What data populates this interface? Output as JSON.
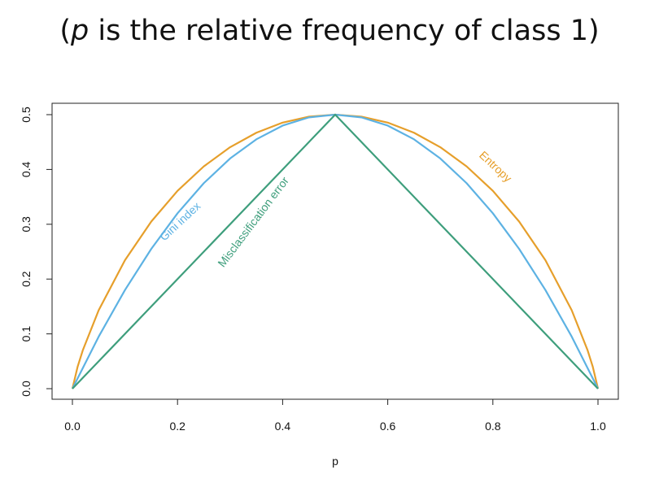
{
  "title": {
    "open_paren": "(",
    "variable": "p",
    "rest": " is the relative frequency of class 1)"
  },
  "chart_data": {
    "type": "line",
    "xlabel": "p",
    "ylabel": "",
    "xlim": [
      0.0,
      1.0
    ],
    "ylim": [
      0.0,
      0.5
    ],
    "xticks": [
      "0.0",
      "0.2",
      "0.4",
      "0.6",
      "0.8",
      "1.0"
    ],
    "yticks": [
      "0.0",
      "0.1",
      "0.2",
      "0.3",
      "0.4",
      "0.5"
    ],
    "grid": false,
    "legend": "none",
    "series": [
      {
        "name": "Entropy",
        "color": "#E69F2B",
        "x": [
          0.0,
          0.01,
          0.02,
          0.05,
          0.1,
          0.15,
          0.2,
          0.25,
          0.3,
          0.35,
          0.4,
          0.45,
          0.5,
          0.55,
          0.6,
          0.65,
          0.7,
          0.75,
          0.8,
          0.85,
          0.9,
          0.95,
          0.98,
          0.99,
          1.0
        ],
        "values": [
          0.0,
          0.0404,
          0.0707,
          0.1432,
          0.2345,
          0.3049,
          0.361,
          0.4056,
          0.4406,
          0.467,
          0.4855,
          0.4964,
          0.5,
          0.4964,
          0.4855,
          0.467,
          0.4406,
          0.4056,
          0.361,
          0.3049,
          0.2345,
          0.1432,
          0.0707,
          0.0404,
          0.0
        ]
      },
      {
        "name": "Gini index",
        "color": "#5DB2E3",
        "x": [
          0.0,
          0.05,
          0.1,
          0.15,
          0.2,
          0.25,
          0.3,
          0.35,
          0.4,
          0.45,
          0.5,
          0.55,
          0.6,
          0.65,
          0.7,
          0.75,
          0.8,
          0.85,
          0.9,
          0.95,
          1.0
        ],
        "values": [
          0.0,
          0.095,
          0.18,
          0.255,
          0.32,
          0.375,
          0.42,
          0.455,
          0.48,
          0.495,
          0.5,
          0.495,
          0.48,
          0.455,
          0.42,
          0.375,
          0.32,
          0.255,
          0.18,
          0.095,
          0.0
        ]
      },
      {
        "name": "Misclassification error",
        "color": "#3E9E7C",
        "x": [
          0.0,
          0.5,
          1.0
        ],
        "values": [
          0.0,
          0.5,
          0.0
        ]
      }
    ],
    "annotations": [
      {
        "text": "Entropy",
        "series": "Entropy",
        "x": 0.8,
        "y": 0.4
      },
      {
        "text": "Gini index",
        "series": "Gini index",
        "x": 0.21,
        "y": 0.3
      },
      {
        "text": "Misclassification error",
        "series": "Misclassification error",
        "x": 0.35,
        "y": 0.3
      }
    ]
  }
}
